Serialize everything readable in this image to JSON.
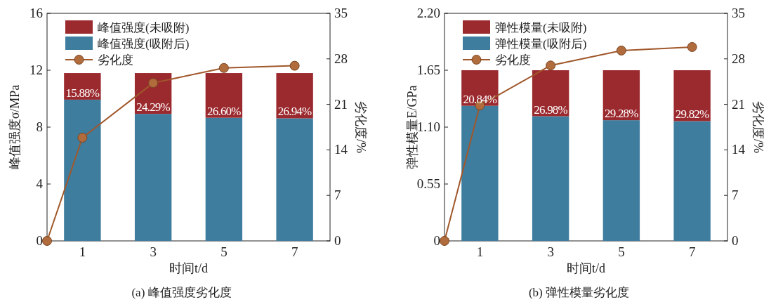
{
  "chart_data": [
    {
      "type": "bar",
      "title": "(a) 峰值强度劣化度",
      "xlabel": "时间t/d",
      "ylabel": "峰值强度σ/MPa",
      "y2label": "劣化度/%",
      "stacked": true,
      "legend": "top left",
      "x": [
        1,
        3,
        5,
        7
      ],
      "xlim": [
        0,
        8
      ],
      "xticks": [
        1,
        3,
        5,
        7
      ],
      "ylim": [
        0,
        16
      ],
      "yticks": [
        0,
        4,
        8,
        12,
        16
      ],
      "y2lim": [
        0,
        35
      ],
      "y2ticks": [
        0,
        7,
        14,
        21,
        28,
        35
      ],
      "series": [
        {
          "name": "峰值强度(吸附后)",
          "color": "#3f7d9f",
          "values": [
            9.93,
            8.93,
            8.66,
            8.62
          ]
        },
        {
          "name": "峰值强度(未吸附)",
          "color": "#9b2a2f",
          "values": [
            1.87,
            2.87,
            3.14,
            3.18
          ]
        },
        {
          "name": "劣化度",
          "type": "line",
          "axis": "y2",
          "marker": "circle",
          "color": "#a0572a",
          "x": [
            0,
            1,
            3,
            5,
            7
          ],
          "values": [
            0,
            15.88,
            24.29,
            26.6,
            26.94
          ]
        }
      ],
      "annotations": [
        {
          "text": "15.88%",
          "x": 1,
          "y": 9.93
        },
        {
          "text": "24.29%",
          "x": 3,
          "y": 8.93
        },
        {
          "text": "26.60%",
          "x": 5,
          "y": 8.66
        },
        {
          "text": "26.94%",
          "x": 7,
          "y": 8.62
        }
      ]
    },
    {
      "type": "bar",
      "title": "(b) 弹性模量劣化度",
      "xlabel": "时间t/d",
      "ylabel": "弹性模量E/GPa",
      "y2label": "劣化度/%",
      "stacked": true,
      "legend": "top left",
      "x": [
        1,
        3,
        5,
        7
      ],
      "xlim": [
        0,
        8
      ],
      "xticks": [
        1,
        3,
        5,
        7
      ],
      "ylim": [
        0,
        2.2
      ],
      "yticks": [
        0,
        0.55,
        {
          "value": 1.1,
          "label": "1.10"
        },
        1.65,
        {
          "value": 2.2,
          "label": "2.20"
        }
      ],
      "y2lim": [
        0,
        35
      ],
      "y2ticks": [
        0,
        7,
        14,
        21,
        28,
        35
      ],
      "series": [
        {
          "name": "弹性模量(吸附后)",
          "color": "#3f7d9f",
          "values": [
            1.306,
            1.205,
            1.167,
            1.158
          ]
        },
        {
          "name": "弹性模量(未吸附)",
          "color": "#9b2a2f",
          "values": [
            0.344,
            0.445,
            0.483,
            0.492
          ]
        },
        {
          "name": "劣化度",
          "type": "line",
          "axis": "y2",
          "marker": "circle",
          "color": "#a0572a",
          "x": [
            0,
            1,
            3,
            5,
            7
          ],
          "values": [
            0,
            20.84,
            26.98,
            29.28,
            29.82
          ]
        }
      ],
      "annotations": [
        {
          "text": "20.84%",
          "x": 1,
          "y": 1.306
        },
        {
          "text": "26.98%",
          "x": 3,
          "y": 1.205
        },
        {
          "text": "29.28%",
          "x": 5,
          "y": 1.167
        },
        {
          "text": "29.82%",
          "x": 7,
          "y": 1.158
        }
      ]
    }
  ]
}
